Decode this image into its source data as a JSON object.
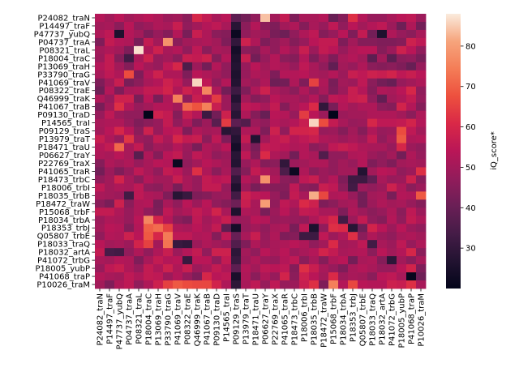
{
  "chart_data": {
    "type": "heatmap",
    "title": "",
    "xlabel": "",
    "ylabel": "",
    "colorbar_label": "iQ_score*",
    "colorbar_range": [
      20,
      88
    ],
    "colorbar_ticks": [
      30,
      40,
      50,
      60,
      70,
      80
    ],
    "colormap": "rocket",
    "labels": [
      "P24082_traN",
      "P14497_traF",
      "P47737_yubQ",
      "P04737_traA",
      "P08321_traL",
      "P18004_traC",
      "P13069_traH",
      "P33790_traG",
      "P41069_traV",
      "P08322_traE",
      "Q46999_traK",
      "P41067_traB",
      "P09130_traD",
      "P14565_traI",
      "P09129_traS",
      "P13979_traT",
      "P18471_traU",
      "P06627_traY",
      "P22769_traX",
      "P41065_traR",
      "P18473_trbC",
      "P18006_trbI",
      "P18035_trbB",
      "P18472_traW",
      "P15068_trbF",
      "P18034_trbA",
      "P18353_trbJ",
      "Q05807_trbE",
      "P18033_traQ",
      "P18032_artA",
      "P41072_trbG",
      "P18005_yubP",
      "P41068_traP",
      "P10026_traM"
    ],
    "values": [
      [
        53,
        50,
        54,
        50,
        52,
        54,
        52,
        49,
        50,
        46,
        60,
        56,
        51,
        54,
        38,
        42,
        47,
        84,
        50,
        56,
        44,
        51,
        51,
        53,
        40,
        45,
        62,
        53,
        48,
        48,
        51,
        54,
        55,
        49
      ],
      [
        50,
        51,
        46,
        54,
        47,
        49,
        52,
        51,
        57,
        47,
        50,
        53,
        55,
        51,
        28,
        46,
        53,
        46,
        44,
        50,
        52,
        45,
        51,
        48,
        55,
        47,
        54,
        50,
        53,
        55,
        49,
        41,
        52,
        42
      ],
      [
        52,
        55,
        26,
        53,
        50,
        44,
        48,
        45,
        53,
        43,
        57,
        52,
        46,
        45,
        22,
        47,
        50,
        49,
        43,
        41,
        47,
        52,
        55,
        45,
        48,
        54,
        44,
        56,
        42,
        26,
        52,
        48,
        46,
        51
      ],
      [
        44,
        56,
        53,
        52,
        43,
        56,
        50,
        78,
        46,
        50,
        51,
        52,
        50,
        44,
        30,
        58,
        52,
        44,
        47,
        50,
        45,
        48,
        54,
        56,
        56,
        44,
        50,
        45,
        45,
        44,
        44,
        45,
        58,
        55
      ],
      [
        50,
        52,
        50,
        44,
        87,
        52,
        58,
        51,
        53,
        47,
        55,
        46,
        51,
        50,
        24,
        46,
        45,
        51,
        47,
        53,
        49,
        57,
        49,
        56,
        54,
        48,
        52,
        54,
        54,
        45,
        49,
        58,
        54,
        47
      ],
      [
        49,
        56,
        45,
        33,
        51,
        58,
        48,
        50,
        46,
        57,
        56,
        58,
        45,
        53,
        26,
        57,
        42,
        48,
        53,
        46,
        45,
        53,
        44,
        50,
        44,
        51,
        53,
        50,
        38,
        50,
        38,
        46,
        47,
        43
      ],
      [
        53,
        56,
        50,
        45,
        54,
        50,
        48,
        55,
        60,
        35,
        49,
        42,
        53,
        47,
        27,
        48,
        54,
        50,
        53,
        51,
        48,
        55,
        51,
        47,
        39,
        50,
        48,
        52,
        46,
        45,
        46,
        44,
        40,
        48
      ],
      [
        51,
        55,
        52,
        67,
        44,
        53,
        58,
        52,
        52,
        44,
        54,
        52,
        50,
        47,
        26,
        48,
        52,
        51,
        44,
        53,
        53,
        54,
        51,
        50,
        53,
        49,
        57,
        55,
        58,
        57,
        59,
        55,
        57,
        54
      ],
      [
        44,
        50,
        57,
        43,
        46,
        51,
        53,
        58,
        55,
        48,
        86,
        55,
        47,
        53,
        27,
        50,
        48,
        52,
        41,
        42,
        52,
        44,
        65,
        52,
        43,
        50,
        49,
        55,
        46,
        42,
        40,
        48,
        50,
        52
      ],
      [
        41,
        53,
        44,
        51,
        52,
        56,
        56,
        59,
        52,
        58,
        55,
        76,
        52,
        42,
        32,
        44,
        52,
        58,
        51,
        49,
        46,
        52,
        47,
        51,
        44,
        49,
        57,
        53,
        45,
        52,
        51,
        54,
        60,
        47
      ],
      [
        52,
        48,
        58,
        58,
        43,
        54,
        43,
        52,
        75,
        47,
        57,
        53,
        64,
        49,
        27,
        50,
        45,
        47,
        54,
        51,
        51,
        49,
        53,
        45,
        55,
        54,
        57,
        58,
        47,
        39,
        50,
        52,
        56,
        48
      ],
      [
        43,
        50,
        62,
        53,
        48,
        50,
        53,
        53,
        50,
        71,
        68,
        75,
        57,
        49,
        31,
        55,
        54,
        51,
        56,
        45,
        51,
        54,
        61,
        30,
        43,
        53,
        50,
        52,
        52,
        46,
        45,
        59,
        53,
        45
      ],
      [
        48,
        55,
        49,
        47,
        47,
        18,
        58,
        56,
        45,
        57,
        53,
        32,
        42,
        58,
        28,
        52,
        45,
        40,
        54,
        53,
        48,
        64,
        54,
        49,
        18,
        49,
        50,
        50,
        52,
        52,
        52,
        50,
        46,
        52
      ],
      [
        51,
        52,
        52,
        48,
        44,
        46,
        48,
        56,
        47,
        52,
        44,
        49,
        37,
        64,
        38,
        36,
        49,
        47,
        53,
        51,
        53,
        57,
        86,
        67,
        56,
        51,
        48,
        49,
        60,
        55,
        55,
        56,
        59,
        53
      ],
      [
        50,
        54,
        60,
        54,
        46,
        58,
        48,
        54,
        55,
        44,
        52,
        50,
        51,
        28,
        30,
        52,
        52,
        44,
        58,
        47,
        59,
        59,
        60,
        48,
        49,
        45,
        50,
        45,
        52,
        48,
        49,
        67,
        55,
        50
      ],
      [
        57,
        52,
        48,
        63,
        49,
        47,
        56,
        51,
        60,
        56,
        57,
        46,
        55,
        44,
        27,
        56,
        27,
        50,
        55,
        57,
        53,
        55,
        57,
        52,
        51,
        49,
        51,
        49,
        56,
        47,
        51,
        69,
        52,
        53
      ],
      [
        53,
        56,
        71,
        51,
        56,
        46,
        50,
        49,
        53,
        49,
        43,
        52,
        50,
        54,
        24,
        50,
        43,
        56,
        55,
        54,
        52,
        53,
        46,
        48,
        55,
        57,
        55,
        52,
        51,
        51,
        48,
        60,
        49,
        47
      ],
      [
        52,
        51,
        54,
        51,
        37,
        52,
        45,
        54,
        56,
        48,
        55,
        52,
        47,
        49,
        28,
        55,
        45,
        61,
        52,
        50,
        42,
        53,
        51,
        36,
        47,
        47,
        52,
        53,
        49,
        47,
        50,
        42,
        52,
        48
      ],
      [
        45,
        52,
        50,
        52,
        48,
        51,
        54,
        53,
        22,
        47,
        50,
        54,
        52,
        50,
        27,
        48,
        52,
        45,
        46,
        30,
        49,
        50,
        52,
        52,
        47,
        50,
        48,
        53,
        44,
        47,
        44,
        50,
        51,
        50
      ],
      [
        42,
        49,
        44,
        48,
        55,
        51,
        47,
        56,
        54,
        49,
        62,
        52,
        46,
        51,
        36,
        45,
        56,
        52,
        50,
        35,
        22,
        52,
        46,
        49,
        47,
        50,
        50,
        27,
        50,
        54,
        53,
        47,
        49,
        62
      ],
      [
        47,
        50,
        59,
        51,
        46,
        53,
        50,
        50,
        57,
        51,
        48,
        56,
        54,
        55,
        30,
        53,
        50,
        78,
        52,
        46,
        45,
        55,
        57,
        49,
        53,
        44,
        32,
        32,
        39,
        51,
        48,
        49,
        58,
        46
      ],
      [
        55,
        50,
        52,
        51,
        55,
        47,
        46,
        50,
        43,
        51,
        48,
        56,
        56,
        48,
        26,
        49,
        43,
        46,
        45,
        45,
        55,
        46,
        45,
        57,
        55,
        46,
        33,
        49,
        47,
        49,
        58,
        52,
        46,
        49
      ],
      [
        51,
        50,
        49,
        33,
        55,
        52,
        51,
        44,
        28,
        31,
        44,
        45,
        48,
        49,
        33,
        58,
        55,
        54,
        48,
        44,
        56,
        51,
        82,
        66,
        52,
        53,
        48,
        42,
        50,
        51,
        43,
        53,
        52,
        69
      ],
      [
        46,
        43,
        58,
        46,
        52,
        53,
        43,
        51,
        47,
        54,
        49,
        54,
        47,
        45,
        41,
        57,
        51,
        80,
        47,
        55,
        52,
        61,
        58,
        44,
        46,
        50,
        51,
        42,
        49,
        52,
        50,
        51,
        48,
        45
      ],
      [
        56,
        56,
        52,
        48,
        52,
        47,
        44,
        55,
        50,
        52,
        56,
        53,
        59,
        51,
        26,
        52,
        51,
        43,
        49,
        54,
        49,
        56,
        55,
        51,
        51,
        44,
        52,
        49,
        46,
        48,
        52,
        46,
        55,
        49
      ],
      [
        49,
        52,
        51,
        48,
        54,
        76,
        59,
        53,
        46,
        44,
        55,
        50,
        53,
        57,
        48,
        49,
        54,
        53,
        48,
        49,
        48,
        47,
        52,
        56,
        60,
        33,
        49,
        56,
        47,
        45,
        53,
        47,
        56,
        52
      ],
      [
        50,
        54,
        53,
        45,
        53,
        70,
        72,
        65,
        52,
        51,
        54,
        51,
        56,
        38,
        24,
        48,
        50,
        47,
        51,
        52,
        43,
        55,
        26,
        47,
        62,
        61,
        28,
        41,
        59,
        54,
        49,
        54,
        49,
        47
      ],
      [
        47,
        53,
        52,
        58,
        54,
        69,
        60,
        74,
        55,
        55,
        52,
        53,
        45,
        55,
        40,
        51,
        57,
        48,
        52,
        44,
        45,
        32,
        32,
        55,
        49,
        52,
        62,
        46,
        52,
        49,
        47,
        51,
        52,
        50
      ],
      [
        54,
        50,
        51,
        49,
        59,
        65,
        50,
        73,
        31,
        30,
        49,
        52,
        50,
        48,
        36,
        44,
        52,
        49,
        51,
        52,
        54,
        52,
        47,
        50,
        61,
        50,
        51,
        55,
        33,
        51,
        49,
        55,
        48,
        52
      ],
      [
        56,
        34,
        33,
        47,
        52,
        47,
        52,
        57,
        49,
        53,
        56,
        47,
        58,
        58,
        29,
        50,
        47,
        54,
        51,
        54,
        49,
        51,
        53,
        59,
        56,
        51,
        52,
        53,
        46,
        54,
        50,
        53,
        60,
        46
      ],
      [
        51,
        50,
        53,
        52,
        44,
        51,
        56,
        53,
        54,
        31,
        54,
        54,
        47,
        56,
        31,
        49,
        52,
        49,
        48,
        53,
        55,
        46,
        51,
        45,
        52,
        54,
        42,
        51,
        52,
        45,
        29,
        50,
        46,
        51
      ],
      [
        48,
        55,
        57,
        52,
        48,
        56,
        52,
        58,
        52,
        57,
        49,
        51,
        56,
        52,
        38,
        53,
        50,
        55,
        54,
        55,
        45,
        62,
        57,
        51,
        48,
        44,
        51,
        53,
        51,
        48,
        48,
        54,
        59,
        44
      ],
      [
        53,
        51,
        50,
        55,
        52,
        56,
        55,
        49,
        53,
        48,
        44,
        60,
        54,
        55,
        25,
        52,
        46,
        52,
        48,
        59,
        46,
        58,
        54,
        50,
        61,
        49,
        51,
        50,
        46,
        54,
        55,
        51,
        21,
        41
      ],
      [
        50,
        44,
        52,
        55,
        47,
        52,
        58,
        65,
        69,
        67,
        66,
        66,
        59,
        52,
        29,
        51,
        55,
        48,
        55,
        48,
        49,
        57,
        62,
        44,
        75,
        53,
        66,
        54,
        53,
        53,
        58,
        57,
        62,
        51
      ]
    ]
  }
}
